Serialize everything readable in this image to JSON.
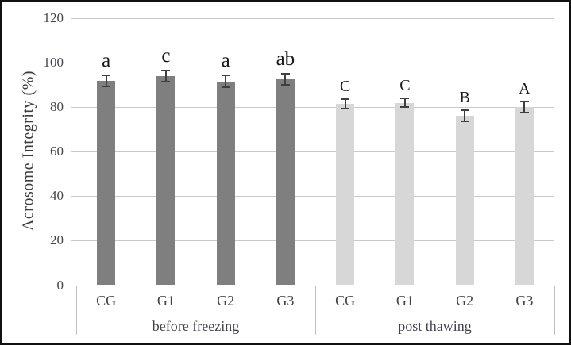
{
  "chart_data": {
    "type": "bar",
    "title": "",
    "ylabel": "Acrosome Integrity (%)",
    "xlabel": "",
    "ylim": [
      0,
      120
    ],
    "yticks": [
      0,
      20,
      40,
      60,
      80,
      100,
      120
    ],
    "grid": true,
    "legend": "none",
    "groups": [
      {
        "label": "before freezing",
        "bar_color": "#7f7f7f",
        "categories": [
          "CG",
          "G1",
          "G2",
          "G3"
        ],
        "values": [
          92,
          94,
          91.5,
          92.5
        ],
        "errors": [
          2.5,
          2.5,
          2.7,
          2.5
        ],
        "letters": [
          "a",
          "c",
          "a",
          "ab"
        ]
      },
      {
        "label": "post thawing",
        "bar_color": "#d7d7d7",
        "categories": [
          "CG",
          "G1",
          "G2",
          "G3"
        ],
        "values": [
          81.5,
          82,
          76,
          80
        ],
        "errors": [
          2.3,
          2.0,
          2.5,
          2.5
        ],
        "letters": [
          "C",
          "C",
          "B",
          "A"
        ]
      }
    ],
    "style": {
      "error_bar_color": "#3f3f3f",
      "gridline_color": "#c9c9c9",
      "axis_line_color": "#bfbfbf",
      "text_color": "#44444e",
      "letter_color": "#1a1a1a",
      "background": "#ffffff",
      "frame_color": "#111111"
    }
  }
}
